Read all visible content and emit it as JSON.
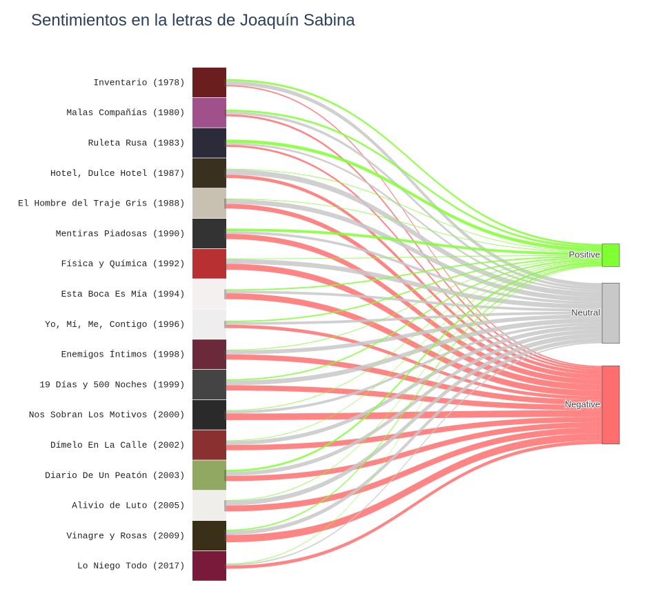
{
  "chart_data": {
    "type": "sankey",
    "title": "Sentimientos en la letras de Joaquín Sabina",
    "categories": [
      "Inventario (1978)",
      "Malas Compañías (1980)",
      "Ruleta Rusa (1983)",
      "Hotel, Dulce Hotel (1987)",
      "El Hombre del Traje Gris (1988)",
      "Mentiras Piadosas (1990)",
      "Física y Química (1992)",
      "Esta Boca Es Mía (1994)",
      "Yo, Mí, Me, Contigo (1996)",
      "Enemigos Íntimos (1998)",
      "19 Días y 500 Noches (1999)",
      "Nos Sobran Los Motivos (2000)",
      "Dímelo En La Calle (2002)",
      "Diario De Un Peatón (2003)",
      "Alivio de Luto (2005)",
      "Vinagre y Rosas (2009)",
      "Lo Niego Todo (2017)"
    ],
    "series": [
      {
        "name": "Positive",
        "color": "#80ff33",
        "values": [
          3,
          3,
          5,
          1,
          1,
          4,
          1,
          2,
          2,
          1,
          2,
          1,
          1,
          3,
          1,
          2,
          1
        ]
      },
      {
        "name": "Neutral",
        "color": "#c8c8c8",
        "values": [
          6,
          4,
          3,
          8,
          7,
          4,
          7,
          4,
          4,
          6,
          7,
          4,
          6,
          6,
          7,
          6,
          2
        ]
      },
      {
        "name": "Negative",
        "color": "#ff6e6e",
        "values": [
          2,
          3,
          3,
          5,
          7,
          8,
          9,
          9,
          5,
          8,
          8,
          10,
          8,
          8,
          9,
          11,
          5
        ]
      }
    ]
  }
}
